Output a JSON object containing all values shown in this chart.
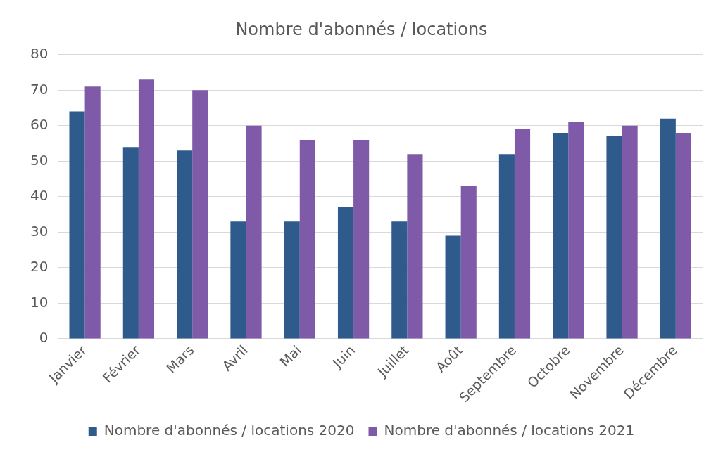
{
  "chart_data": {
    "type": "bar",
    "title": "Nombre d'abonnés / locations",
    "categories": [
      "Janvier",
      "Février",
      "Mars",
      "Avril",
      "Mai",
      "Juin",
      "Juillet",
      "Août",
      "Septembre",
      "Octobre",
      "Novembre",
      "Décembre"
    ],
    "series": [
      {
        "name": "Nombre d'abonnés / locations 2020",
        "color": "#2e5a8c",
        "values": [
          64,
          54,
          53,
          33,
          33,
          37,
          33,
          29,
          52,
          58,
          57,
          62
        ]
      },
      {
        "name": "Nombre d'abonnés / locations 2021",
        "color": "#7f5aa8",
        "values": [
          71,
          73,
          70,
          60,
          56,
          56,
          52,
          43,
          59,
          61,
          60,
          58
        ]
      }
    ],
    "ylim": [
      0,
      80
    ],
    "yticks": [
      0,
      10,
      20,
      30,
      40,
      50,
      60,
      70,
      80
    ],
    "grid": "y",
    "legend": "bottom"
  }
}
